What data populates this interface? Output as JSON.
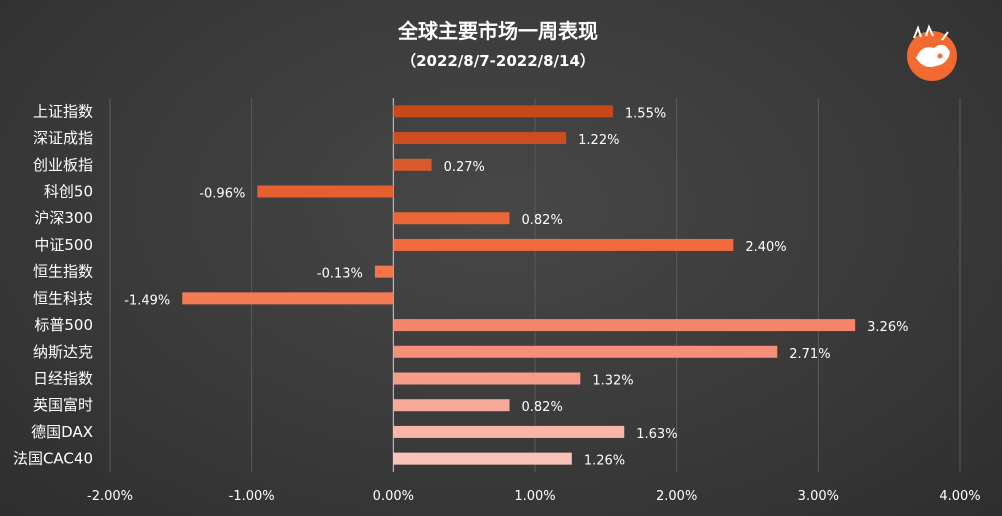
{
  "chart_data": {
    "type": "bar",
    "orientation": "horizontal",
    "title": "全球主要市场一周表现",
    "subtitle": "（2022/8/7-2022/8/14）",
    "categories": [
      "上证指数",
      "深证成指",
      "创业板指",
      "科创50",
      "沪深300",
      "中证500",
      "恒生指数",
      "恒生科技",
      "标普500",
      "纳斯达克",
      "日经指数",
      "英国富时",
      "德国DAX",
      "法国CAC40"
    ],
    "values": [
      1.55,
      1.22,
      0.27,
      -0.96,
      0.82,
      2.4,
      -0.13,
      -1.49,
      3.26,
      2.71,
      1.32,
      0.82,
      1.63,
      1.26
    ],
    "data_labels": [
      "1.55%",
      "1.22%",
      "0.27%",
      "-0.96%",
      "0.82%",
      "2.40%",
      "-0.13%",
      "-1.49%",
      "3.26%",
      "2.71%",
      "1.32%",
      "0.82%",
      "1.63%",
      "1.26%"
    ],
    "x_ticks": [
      -2,
      -1,
      0,
      1,
      2,
      3,
      4
    ],
    "x_tick_labels": [
      "-2.00%",
      "-1.00%",
      "0.00%",
      "1.00%",
      "2.00%",
      "3.00%",
      "4.00%"
    ],
    "xlim": [
      -2,
      4
    ],
    "xlabel": "",
    "ylabel": "",
    "grid": true,
    "legend": "none",
    "bar_colors": [
      "#c8481d",
      "#cd4d20",
      "#d95a2b",
      "#e4602f",
      "#ec6536",
      "#f26b3e",
      "#f4754b",
      "#f47c55",
      "#f4846a",
      "#f58f78",
      "#f79c89",
      "#f8a999",
      "#fab5a7",
      "#fbc3b7"
    ]
  }
}
